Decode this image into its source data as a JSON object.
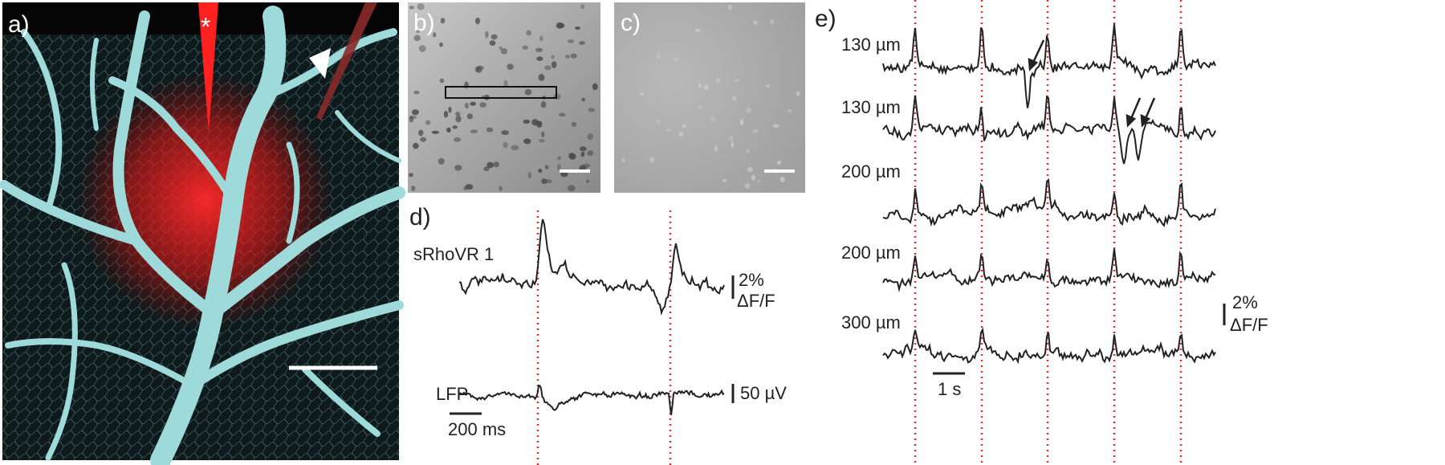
{
  "panel_a": {
    "label": "a)",
    "pipette_marker": "*"
  },
  "panel_b": {
    "label": "b)"
  },
  "panel_c": {
    "label": "c)"
  },
  "panel_d": {
    "label": "d)",
    "trace_names": [
      "sRhoVR 1",
      "LFP"
    ],
    "fluorescence_bar": "2%",
    "fluorescence_unit": "ΔF/F",
    "lfp_bar": "50 µV",
    "time_bar": "200 ms"
  },
  "panel_e": {
    "label": "e)",
    "depths": [
      "130 µm",
      "130 µm",
      "200 µm",
      "200 µm",
      "300 µm"
    ],
    "fluorescence_bar": "2%",
    "fluorescence_unit": "ΔF/F",
    "time_bar": "1 s"
  }
}
